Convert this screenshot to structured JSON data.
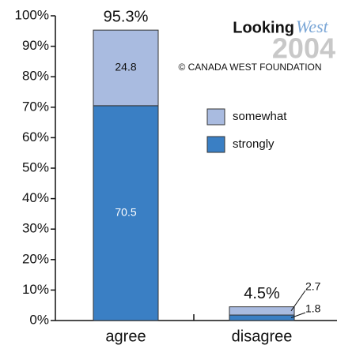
{
  "chart_data": {
    "type": "stacked_bar",
    "categories": [
      "agree",
      "disagree"
    ],
    "series": [
      {
        "name": "strongly",
        "color": "#3a7fc4",
        "values": [
          70.5,
          1.8
        ]
      },
      {
        "name": "somewhat",
        "color": "#a9bbe0",
        "values": [
          24.8,
          2.7
        ]
      }
    ],
    "total_labels": [
      "95.3%",
      "4.5%"
    ],
    "ylim": [
      0,
      100
    ],
    "yticks": [
      {
        "value": 0,
        "label": "0%"
      },
      {
        "value": 10,
        "label": "10%"
      },
      {
        "value": 20,
        "label": "20%"
      },
      {
        "value": 30,
        "label": "30%"
      },
      {
        "value": 40,
        "label": "40%"
      },
      {
        "value": 50,
        "label": "50%"
      },
      {
        "value": 60,
        "label": "60%"
      },
      {
        "value": 70,
        "label": "70%"
      },
      {
        "value": 80,
        "label": "80%"
      },
      {
        "value": 90,
        "label": "90%"
      },
      {
        "value": 100,
        "label": "100%"
      }
    ],
    "logo": {
      "word": "Looking",
      "script": "West",
      "year": "2004",
      "credit": "© CANADA WEST FOUNDATION"
    }
  }
}
